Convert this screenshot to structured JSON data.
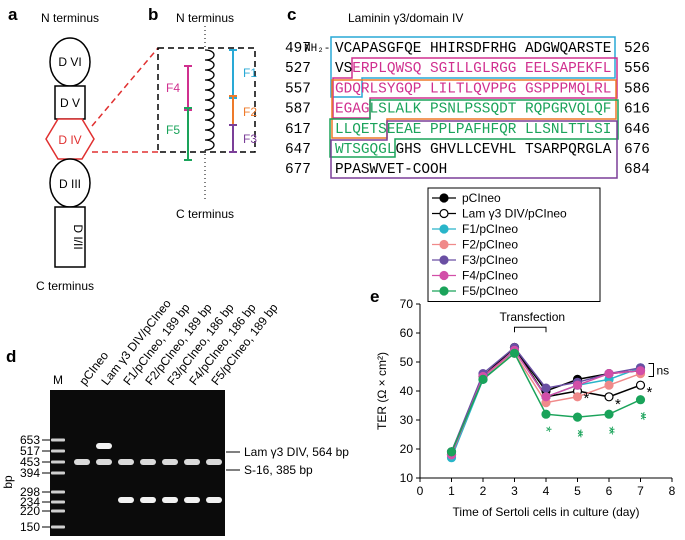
{
  "panel_a": {
    "label": "a",
    "n_terminus": "N terminus",
    "c_terminus": "C terminus",
    "domains": [
      "D VI",
      "D V",
      "D IV",
      "D III",
      "D I/II"
    ]
  },
  "panel_b": {
    "label": "b",
    "n_terminus": "N terminus",
    "c_terminus": "C terminus",
    "fragments": [
      {
        "name": "F1",
        "color": "#29a9d6"
      },
      {
        "name": "F2",
        "color": "#ee7a2a"
      },
      {
        "name": "F3",
        "color": "#7b3f98"
      },
      {
        "name": "F4",
        "color": "#d0308f"
      },
      {
        "name": "F5",
        "color": "#1aa35a"
      }
    ]
  },
  "panel_c": {
    "label": "c",
    "title": "Laminin γ3/domain IV",
    "n_cap": "NH₂-",
    "rows": [
      {
        "start": 497,
        "end": 526,
        "segments": [
          {
            "text": "VCAPASGFQE HHIRSDFRHG ADGWQARSTE",
            "color": "#000000"
          }
        ]
      },
      {
        "start": 527,
        "end": 556,
        "segments": [
          {
            "text": "VS",
            "color": "#000000"
          },
          {
            "text": "ERPLQWSQ SGILLGLRGG EELSAPEKFL",
            "color": "#d0308f"
          }
        ]
      },
      {
        "start": 557,
        "end": 586,
        "segments": [
          {
            "text": "GDQRLSYGQP LILTLQVPPG GSPPPMQLRL",
            "color": "#d0308f"
          }
        ]
      },
      {
        "start": 587,
        "end": 616,
        "segments": [
          {
            "text": "EGAG",
            "color": "#d0308f"
          },
          {
            "text": "LSLALK PSNLPSSQDT RQPGRVQLQF",
            "color": "#1aa35a"
          }
        ]
      },
      {
        "start": 617,
        "end": 646,
        "segments": [
          {
            "text": "LLQETSEEAE PPLPAFHFQR LLSNLTTLSI",
            "color": "#1aa35a"
          }
        ]
      },
      {
        "start": 647,
        "end": 676,
        "segments": [
          {
            "text": "WTSGQGL",
            "color": "#1aa35a"
          },
          {
            "text": "GHS GHVLLCEVHL TSARPQRGLA",
            "color": "#000000"
          }
        ]
      },
      {
        "start": 677,
        "end": 684,
        "segments": [
          {
            "text": "PPASWVET-COOH",
            "color": "#000000"
          }
        ]
      }
    ]
  },
  "panel_d": {
    "label": "d",
    "unit": "bp",
    "lanes": [
      "M",
      "pCIneo",
      "Lam γ3 DIV/pCIneo",
      "F1/pCIneo, 189 bp",
      "F2/pCIneo, 189 bp",
      "F3/pCIneo, 186 bp",
      "F4/pCIneo, 186 bp",
      "F5/pCIneo, 189 bp"
    ],
    "sizes": [
      653,
      517,
      453,
      394,
      298,
      234,
      220,
      150
    ],
    "bands": [
      "Lam γ3 DIV, 564 bp",
      "S-16, 385 bp"
    ]
  },
  "chart_data": {
    "type": "line",
    "label": "e",
    "x_label": "Time of Sertoli cells in culture (day)",
    "y_label": "TER (Ω × cm²)",
    "annotation": "Transfection",
    "ns_label": "ns",
    "x": [
      1,
      2,
      3,
      4,
      5,
      6,
      7
    ],
    "xlim": [
      0,
      8
    ],
    "xticks": [
      0,
      1,
      2,
      3,
      4,
      5,
      6,
      7,
      8
    ],
    "ylim": [
      10,
      70
    ],
    "yticks": [
      10,
      20,
      30,
      40,
      50,
      60,
      70
    ],
    "series": [
      {
        "name": "pCIneo",
        "color": "#000000",
        "fill": "#000000",
        "values": [
          19,
          45,
          55,
          40,
          44,
          46,
          47
        ]
      },
      {
        "name": "Lam γ3 DIV/pCIneo",
        "color": "#000000",
        "fill": "#ffffff",
        "values": [
          18,
          45,
          55,
          38,
          40,
          38,
          42
        ],
        "significance": [
          null,
          null,
          null,
          null,
          "*",
          "*",
          "*"
        ]
      },
      {
        "name": "F1/pCIneo",
        "color": "#29b5c9",
        "fill": "#29b5c9",
        "values": [
          17,
          44,
          54,
          38,
          42,
          44,
          48
        ]
      },
      {
        "name": "F2/pCIneo",
        "color": "#f08a8a",
        "fill": "#f08a8a",
        "values": [
          18,
          45,
          53,
          36,
          38,
          42,
          46
        ]
      },
      {
        "name": "F3/pCIneo",
        "color": "#6a4fa3",
        "fill": "#6a4fa3",
        "values": [
          19,
          46,
          55,
          41,
          43,
          46,
          48
        ]
      },
      {
        "name": "F4/pCIneo",
        "color": "#d24fa8",
        "fill": "#d24fa8",
        "values": [
          18,
          45,
          54,
          38,
          42,
          46,
          47
        ]
      },
      {
        "name": "F5/pCIneo",
        "color": "#1aa35a",
        "fill": "#1aa35a",
        "values": [
          19,
          44,
          53,
          32,
          31,
          32,
          37
        ],
        "significance": [
          null,
          null,
          null,
          "*",
          "**",
          "**",
          "**"
        ]
      }
    ]
  }
}
